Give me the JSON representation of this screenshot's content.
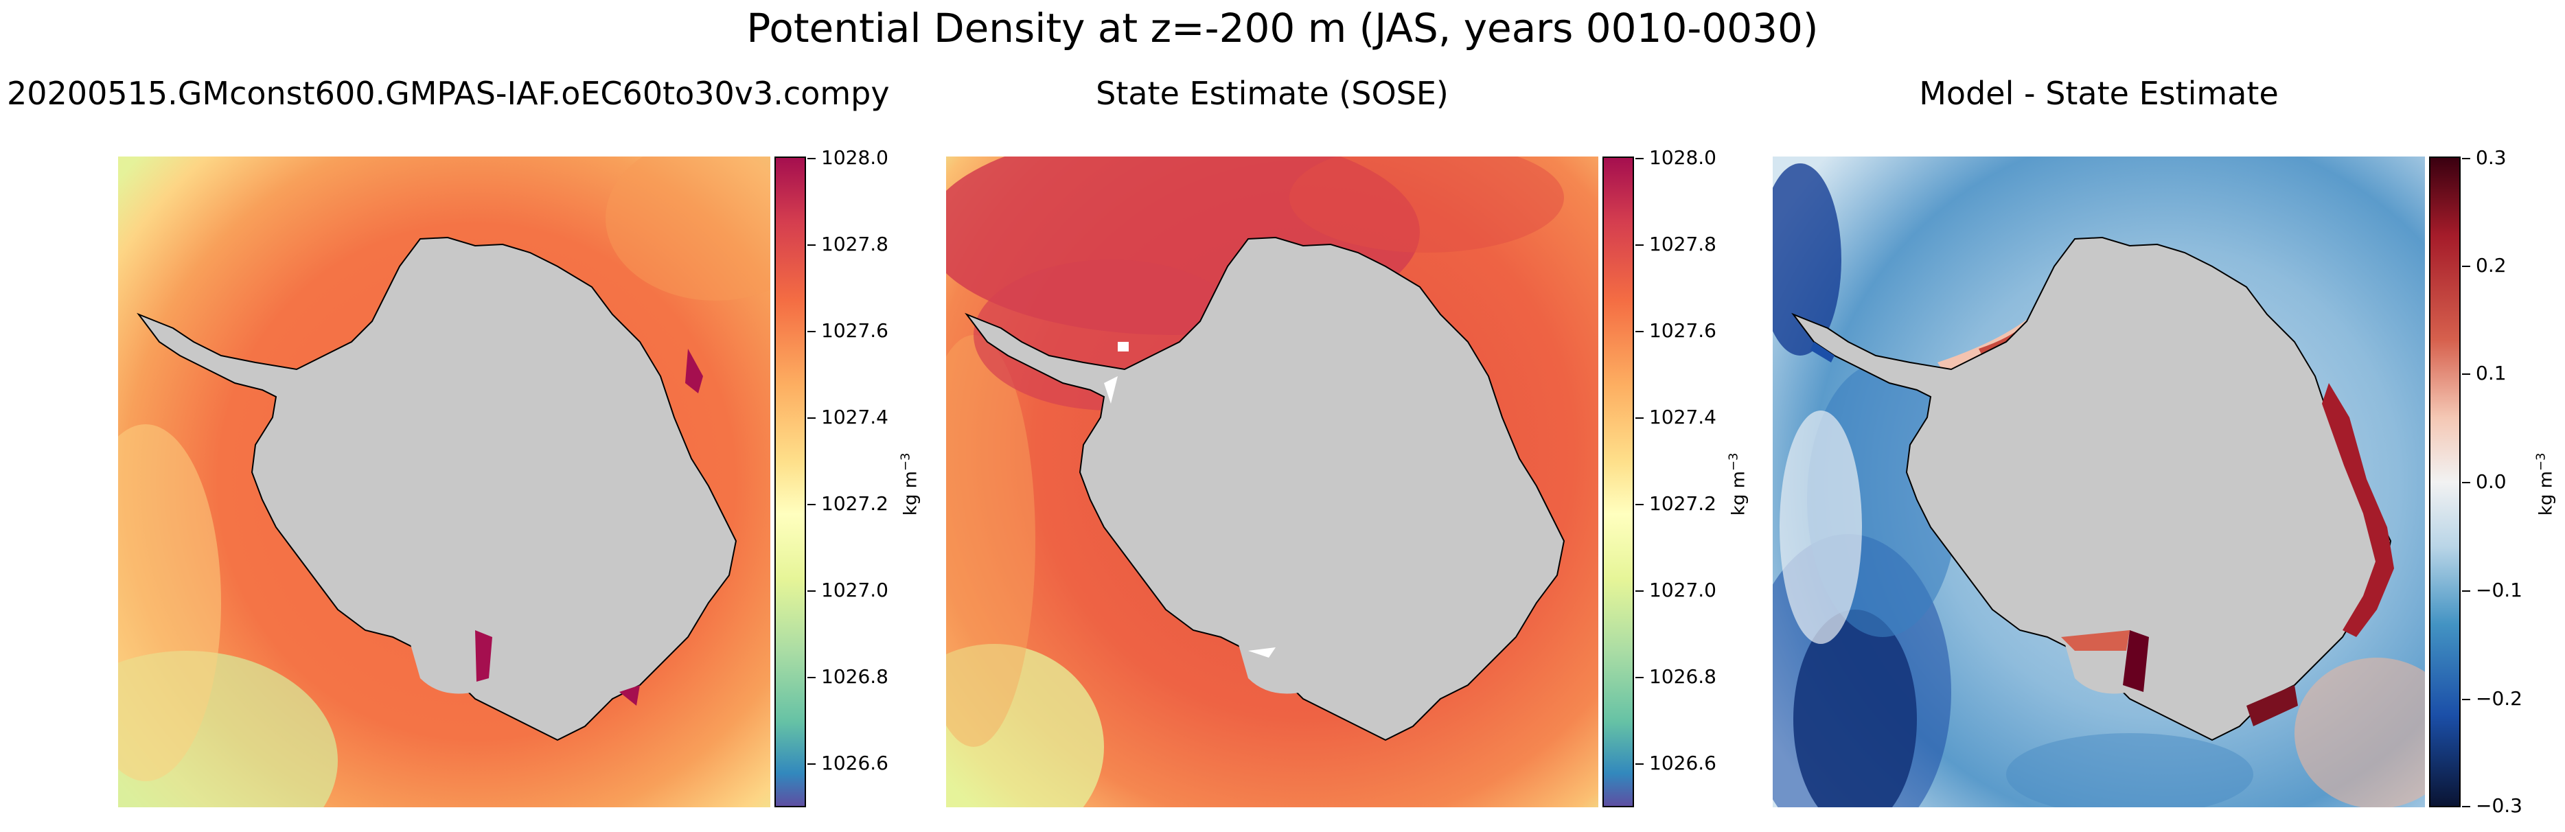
{
  "figure": {
    "suptitle": "Potential Density at z=-200 m (JAS, years 0010-0030)"
  },
  "panels": [
    {
      "title": "20200515.GMconst600.GMPAS-IAF.oEC60to30v3.compy",
      "colorbar": {
        "ticks": [
          "1028.0",
          "1027.8",
          "1027.6",
          "1027.4",
          "1027.2",
          "1027.0",
          "1026.8",
          "1026.6"
        ],
        "unit": "kg m",
        "unit_exp": "−3",
        "colormap": "Spectral_r"
      }
    },
    {
      "title": "State Estimate (SOSE)",
      "colorbar": {
        "ticks": [
          "1028.0",
          "1027.8",
          "1027.6",
          "1027.4",
          "1027.2",
          "1027.0",
          "1026.8",
          "1026.6"
        ],
        "unit": "kg m",
        "unit_exp": "−3",
        "colormap": "Spectral_r"
      }
    },
    {
      "title": "Model - State Estimate",
      "colorbar": {
        "ticks": [
          "0.3",
          "0.2",
          "0.1",
          "0.0",
          "−0.1",
          "−0.2",
          "−0.3"
        ],
        "unit": "kg m",
        "unit_exp": "−3",
        "colormap": "RdBu_r"
      }
    }
  ],
  "colors": {
    "land": "#c8c8c8",
    "coastline": "#000000",
    "spectral_top": "#a50f4f",
    "spectral_bottom": "#5e4fa2",
    "diff_positive": "#67001f",
    "diff_negative": "#053061"
  }
}
